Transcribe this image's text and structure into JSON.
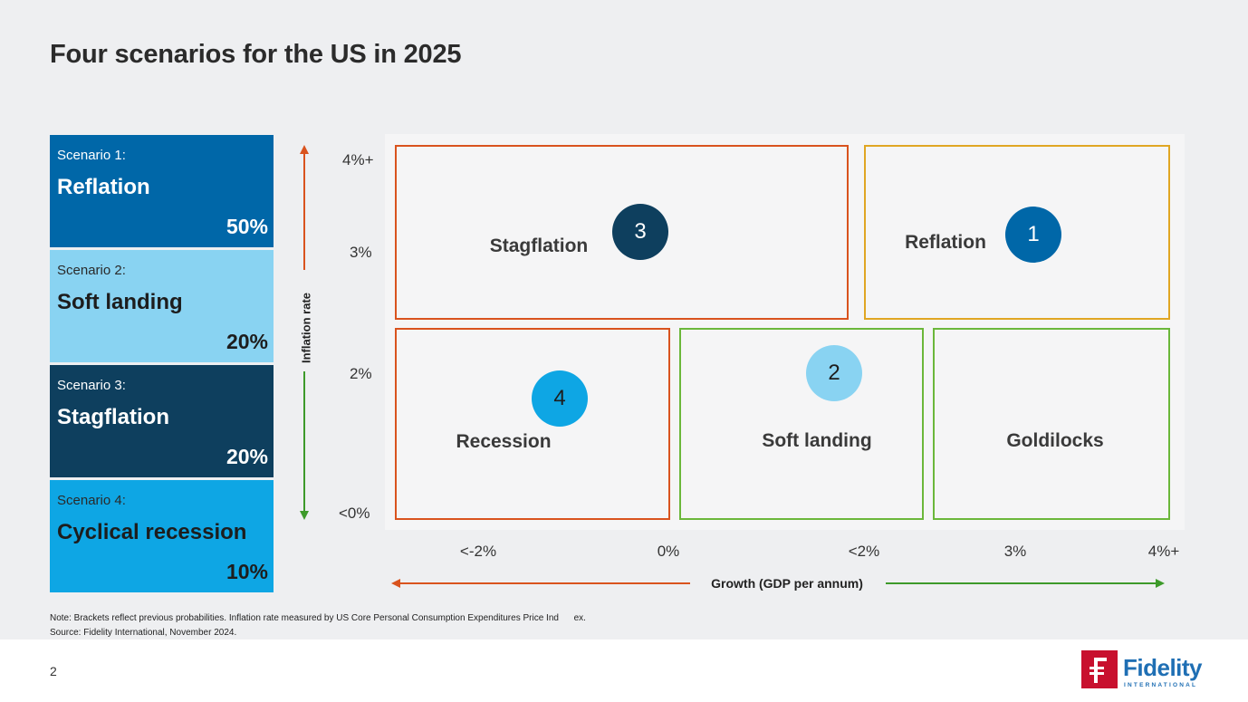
{
  "title": "Four scenarios for the US in 2025",
  "scenarios": [
    {
      "subtitle": "Scenario 1:",
      "name": "Reflation",
      "probability": "50%",
      "color": "#0067a8"
    },
    {
      "subtitle": "Scenario 2:",
      "name": "Soft landing",
      "probability": "20%",
      "color": "#89d3f2"
    },
    {
      "subtitle": "Scenario 3:",
      "name": "Stagflation",
      "probability": "20%",
      "color": "#0e3f5e"
    },
    {
      "subtitle": "Scenario 4:",
      "name": "Cyclical recession",
      "probability": "10%",
      "color": "#0ea6e4"
    }
  ],
  "y_axis": {
    "label": "Inflation rate",
    "ticks": [
      "4%+",
      "3%",
      "2%",
      "<0%"
    ]
  },
  "x_axis": {
    "label": "Growth (GDP per annum)",
    "ticks": [
      "<-2%",
      "0%",
      "<2%",
      "3%",
      "4%+"
    ]
  },
  "regions": [
    {
      "label": "Stagflation",
      "color": "#d9531e"
    },
    {
      "label": "Reflation",
      "color": "#e0a623"
    },
    {
      "label": "Recession",
      "color": "#d9531e"
    },
    {
      "label": "Soft landing",
      "color": "#6bb73a"
    },
    {
      "label": "Goldilocks",
      "color": "#6bb73a"
    }
  ],
  "markers": [
    {
      "number": "3",
      "color": "#0e3f5e",
      "text_color": "#ffffff"
    },
    {
      "number": "1",
      "color": "#0067a8",
      "text_color": "#ffffff"
    },
    {
      "number": "2",
      "color": "#89d3f2",
      "text_color": "#1d1d1d"
    },
    {
      "number": "4",
      "color": "#0ea6e4",
      "text_color": "#1d1d1d"
    }
  ],
  "notes": {
    "note": "Note: Brackets reflect previous probabilities. Inflation rate measured by US Core Personal Consumption Expenditures Price Ind      ex.",
    "source": "Source: Fidelity International, November 2024."
  },
  "footer": {
    "page_number": "2",
    "logo_text": "Fidelity",
    "logo_sub": "INTERNATIONAL"
  },
  "arrow_colors": {
    "up": "#d9531e",
    "down": "#3d9a2a",
    "left": "#d9531e",
    "right": "#3d9a2a"
  }
}
